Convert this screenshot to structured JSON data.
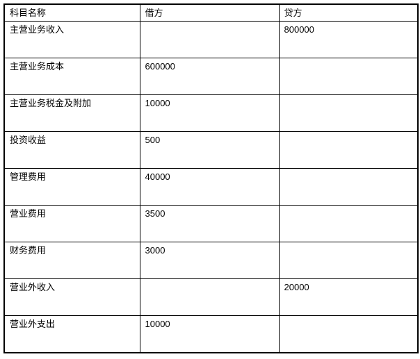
{
  "table": {
    "columns": {
      "name": "科目名称",
      "debit": "借方",
      "credit": "贷方"
    },
    "rows": [
      {
        "name": "主营业务收入",
        "debit": "",
        "credit": "800000"
      },
      {
        "name": "主营业务成本",
        "debit": "600000",
        "credit": ""
      },
      {
        "name": "主营业务税金及附加",
        "debit": "10000",
        "credit": ""
      },
      {
        "name": "投资收益",
        "debit": "500",
        "credit": ""
      },
      {
        "name": "管理费用",
        "debit": "40000",
        "credit": ""
      },
      {
        "name": "营业费用",
        "debit": "3500",
        "credit": ""
      },
      {
        "name": "财务费用",
        "debit": "3000",
        "credit": ""
      },
      {
        "name": "营业外收入",
        "debit": "",
        "credit": "20000"
      },
      {
        "name": "营业外支出",
        "debit": "10000",
        "credit": ""
      }
    ],
    "colors": {
      "border": "#000000",
      "text": "#000000",
      "background": "#ffffff"
    }
  }
}
